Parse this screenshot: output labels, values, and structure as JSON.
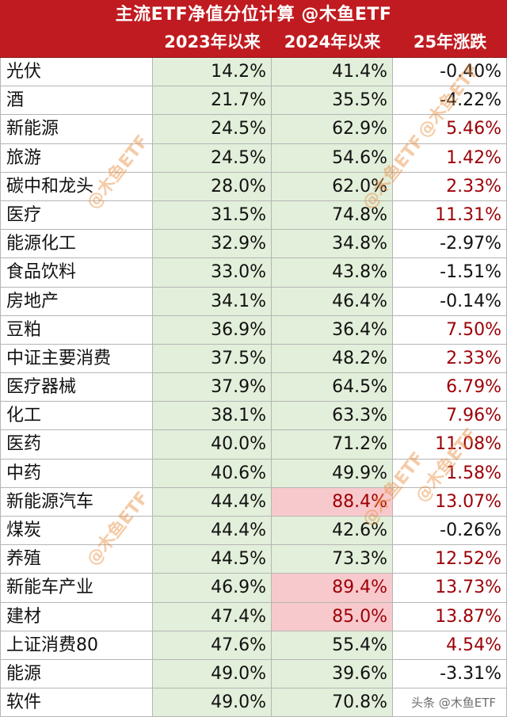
{
  "header": {
    "title": "主流ETF净值分位计算 @木鱼ETF",
    "columns": [
      "",
      "2023年以来",
      "2024年以来",
      "25年涨跌"
    ]
  },
  "rows": [
    {
      "name": "光伏",
      "v2023": "14.2%",
      "v2024": "41.4%",
      "change": "-0.40%",
      "v2024_high": false,
      "positive": false
    },
    {
      "name": "酒",
      "v2023": "21.7%",
      "v2024": "35.5%",
      "change": "-4.22%",
      "v2024_high": false,
      "positive": false
    },
    {
      "name": "新能源",
      "v2023": "24.5%",
      "v2024": "62.9%",
      "change": "5.46%",
      "v2024_high": false,
      "positive": true
    },
    {
      "name": "旅游",
      "v2023": "24.5%",
      "v2024": "54.6%",
      "change": "1.42%",
      "v2024_high": false,
      "positive": true
    },
    {
      "name": "碳中和龙头",
      "v2023": "28.0%",
      "v2024": "62.0%",
      "change": "2.33%",
      "v2024_high": false,
      "positive": true
    },
    {
      "name": "医疗",
      "v2023": "31.5%",
      "v2024": "74.8%",
      "change": "11.31%",
      "v2024_high": false,
      "positive": true
    },
    {
      "name": "能源化工",
      "v2023": "32.9%",
      "v2024": "34.8%",
      "change": "-2.97%",
      "v2024_high": false,
      "positive": false
    },
    {
      "name": "食品饮料",
      "v2023": "33.0%",
      "v2024": "43.8%",
      "change": "-1.51%",
      "v2024_high": false,
      "positive": false
    },
    {
      "name": "房地产",
      "v2023": "34.1%",
      "v2024": "46.4%",
      "change": "-0.14%",
      "v2024_high": false,
      "positive": false
    },
    {
      "name": "豆粕",
      "v2023": "36.9%",
      "v2024": "36.4%",
      "change": "7.50%",
      "v2024_high": false,
      "positive": true
    },
    {
      "name": "中证主要消费",
      "v2023": "37.5%",
      "v2024": "48.2%",
      "change": "2.33%",
      "v2024_high": false,
      "positive": true
    },
    {
      "name": "医疗器械",
      "v2023": "37.9%",
      "v2024": "64.5%",
      "change": "6.79%",
      "v2024_high": false,
      "positive": true
    },
    {
      "name": "化工",
      "v2023": "38.1%",
      "v2024": "63.3%",
      "change": "7.96%",
      "v2024_high": false,
      "positive": true
    },
    {
      "name": "医药",
      "v2023": "40.0%",
      "v2024": "71.2%",
      "change": "11.08%",
      "v2024_high": false,
      "positive": true
    },
    {
      "name": "中药",
      "v2023": "40.6%",
      "v2024": "49.9%",
      "change": "1.58%",
      "v2024_high": false,
      "positive": true
    },
    {
      "name": "新能源汽车",
      "v2023": "44.4%",
      "v2024": "88.4%",
      "change": "13.07%",
      "v2024_high": true,
      "positive": true
    },
    {
      "name": "煤炭",
      "v2023": "44.4%",
      "v2024": "42.6%",
      "change": "-0.26%",
      "v2024_high": false,
      "positive": false
    },
    {
      "name": "养殖",
      "v2023": "44.5%",
      "v2024": "73.3%",
      "change": "12.52%",
      "v2024_high": false,
      "positive": true
    },
    {
      "name": "新能车产业",
      "v2023": "46.9%",
      "v2024": "89.4%",
      "change": "13.73%",
      "v2024_high": true,
      "positive": true
    },
    {
      "name": "建材",
      "v2023": "47.4%",
      "v2024": "85.0%",
      "change": "13.87%",
      "v2024_high": true,
      "positive": true
    },
    {
      "name": "上证消费80",
      "v2023": "47.6%",
      "v2024": "55.4%",
      "change": "4.54%",
      "v2024_high": false,
      "positive": true
    },
    {
      "name": "能源",
      "v2023": "49.0%",
      "v2024": "39.6%",
      "change": "-3.31%",
      "v2024_high": false,
      "positive": false
    },
    {
      "name": "软件",
      "v2023": "49.0%",
      "v2024": "70.8%",
      "change": "",
      "v2024_high": false,
      "positive": false
    }
  ],
  "watermark": "@木鱼ETF",
  "footer": "头条 @木鱼ETF",
  "colors": {
    "header": "#c01b20",
    "green_fill": "#e2efda",
    "red_fill": "#f8c9cc",
    "positive_text": "#9c0006"
  }
}
